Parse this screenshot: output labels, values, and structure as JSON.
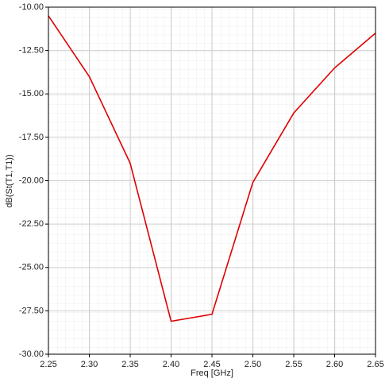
{
  "chart_data": {
    "type": "line",
    "x_label": "Freq [GHz]",
    "y_label": "dB(St(T1,T1))",
    "x": [
      2.25,
      2.3,
      2.35,
      2.4,
      2.45,
      2.5,
      2.55,
      2.6,
      2.65
    ],
    "series": [
      {
        "name": "dB(St(T1,T1))",
        "color": "#e00000",
        "values": [
          -10.5,
          -14.0,
          -19.0,
          -28.1,
          -27.7,
          -20.1,
          -16.1,
          -13.5,
          -11.5
        ]
      }
    ],
    "xlim": [
      2.25,
      2.65
    ],
    "xticks": [
      2.25,
      {
        "value": 2.3,
        "label": "2.30"
      },
      2.35,
      {
        "value": 2.4,
        "label": "2.40"
      },
      2.45,
      {
        "value": 2.5,
        "label": "2.50"
      },
      2.55,
      {
        "value": 2.6,
        "label": "2.60"
      },
      2.65
    ],
    "ylim": [
      -30,
      -10
    ],
    "yticks": [
      {
        "value": -30,
        "label": "-30.00"
      },
      {
        "value": -27.5,
        "label": "-27.50"
      },
      {
        "value": -25,
        "label": "-25.00"
      },
      {
        "value": -22.5,
        "label": "-22.50"
      },
      {
        "value": -20,
        "label": "-20.00"
      },
      {
        "value": -17.5,
        "label": "-17.50"
      },
      {
        "value": -15,
        "label": "-15.00"
      },
      {
        "value": -12.5,
        "label": "-12.50"
      },
      {
        "value": -10,
        "label": "-10.00"
      }
    ],
    "grid": true
  }
}
